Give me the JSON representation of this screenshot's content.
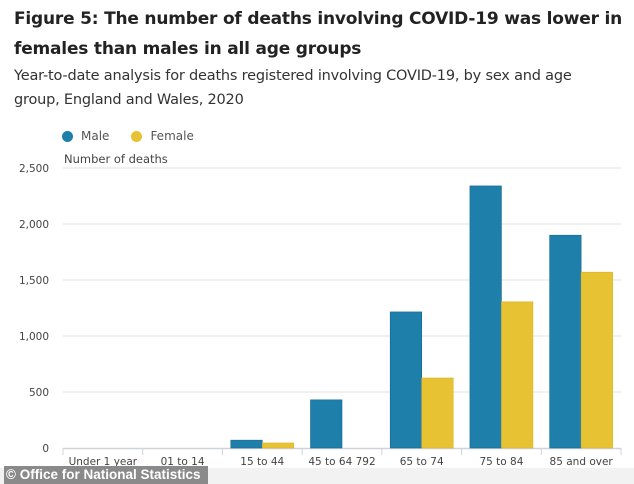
{
  "header": {
    "title": "Figure 5: The number of deaths involving COVID-19 was lower in females than males in all age groups",
    "subtitle": "Year-to-date analysis for deaths registered involving COVID-19, by sex and age group, England and Wales, 2020"
  },
  "footer": {
    "credit": "© Office for National Statistics"
  },
  "chart_data": {
    "type": "bar",
    "title": "Figure 5: The number of deaths involving COVID-19 was lower in females than males in all age groups",
    "subtitle": "Year-to-date analysis for deaths registered involving COVID-19, by sex and age group, England and Wales, 2020",
    "xlabel": "",
    "ylabel": "Number of deaths",
    "ylim": [
      0,
      2500
    ],
    "yticks": [
      0,
      500,
      1000,
      1500,
      2000,
      2500
    ],
    "ytick_labels": [
      "0",
      "500",
      "1,000",
      "1,500",
      "2,000",
      "2,500"
    ],
    "grid": true,
    "legend_position": "top-left",
    "categories": [
      "Under 1 year",
      "01 to 14",
      "15 to 44",
      "45 to 64 792",
      "65 to 74",
      "75 to 84",
      "85 and over"
    ],
    "series": [
      {
        "name": "Male",
        "color": "#1f7fab",
        "values": [
          0,
          0,
          70,
          430,
          1215,
          2340,
          1900
        ]
      },
      {
        "name": "Female",
        "color": "#e7c232",
        "values": [
          0,
          0,
          45,
          0,
          625,
          1305,
          1570
        ]
      }
    ]
  }
}
